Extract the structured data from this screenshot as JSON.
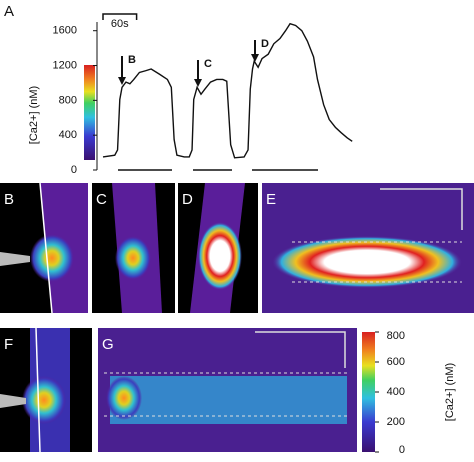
{
  "chart_data": {
    "type": "line",
    "y_label": "[Ca2+] (nM)",
    "panel_label": "A",
    "x": [
      0,
      21,
      26,
      30,
      34,
      41,
      48,
      55,
      65,
      76,
      86,
      101,
      115,
      122,
      127,
      132,
      145,
      154,
      159,
      162,
      168,
      175,
      182,
      192,
      203,
      214,
      221,
      228,
      235,
      252,
      259,
      263,
      267,
      270,
      277,
      284,
      295,
      305,
      316,
      326,
      334,
      344,
      355,
      365,
      376,
      383,
      394,
      404,
      415,
      425,
      436,
      445
    ],
    "series": [
      {
        "color": "#111111",
        "values": [
          150,
          170,
          230,
          810,
          950,
          1010,
          990,
          1040,
          1120,
          1140,
          1160,
          1100,
          1040,
          950,
          350,
          170,
          150,
          150,
          230,
          810,
          950,
          870,
          930,
          1010,
          1040,
          1040,
          1020,
          290,
          140,
          150,
          230,
          930,
          1160,
          1250,
          1180,
          1280,
          1330,
          1450,
          1510,
          1600,
          1680,
          1660,
          1600,
          1480,
          1300,
          1040,
          750,
          580,
          490,
          430,
          370,
          330
        ]
      }
    ],
    "xlim": [
      0,
      450
    ],
    "ylim": [
      0,
      1700
    ],
    "yticks": [
      0,
      400,
      800,
      1200,
      1600
    ],
    "annotations": [
      "B",
      "C",
      "D"
    ],
    "scale_bar": {
      "label": "60s",
      "value": 60
    }
  },
  "panels": [
    "B",
    "C",
    "D",
    "E",
    "F",
    "G"
  ],
  "colorbar": {
    "label": "[Ca2+] (nM)",
    "ylim": [
      0,
      800
    ],
    "yticks": [
      0,
      200,
      400,
      600,
      800
    ]
  }
}
